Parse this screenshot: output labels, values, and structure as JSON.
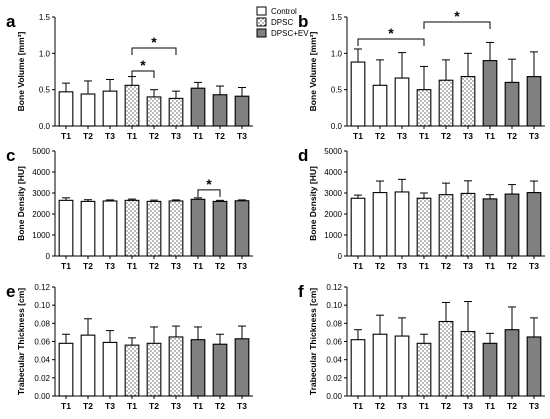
{
  "legend": {
    "items": [
      {
        "label": "Control",
        "pattern": "open"
      },
      {
        "label": "DPSC",
        "pattern": "dots"
      },
      {
        "label": "DPSC+EV",
        "pattern": "gray"
      }
    ]
  },
  "colors": {
    "gray_fill": "#808080",
    "outline": "#000000",
    "dot": "#555555"
  },
  "sig_label": "*",
  "chart_data": [
    {
      "panel": "a",
      "type": "bar",
      "ylabel": "Bone Volume [mm³]",
      "ylim": [
        0,
        1.5
      ],
      "yticks": [
        0,
        0.5,
        1.0,
        1.5
      ],
      "ytick_labels": [
        "0.0",
        "0.5",
        "1.0",
        "1.5"
      ],
      "categories": [
        "T1",
        "T2",
        "T3",
        "T1",
        "T2",
        "T3",
        "T1",
        "T2",
        "T3"
      ],
      "groups": [
        "Control",
        "Control",
        "Control",
        "DPSC",
        "DPSC",
        "DPSC",
        "DPSC+EV",
        "DPSC+EV",
        "DPSC+EV"
      ],
      "values": [
        0.47,
        0.44,
        0.48,
        0.56,
        0.4,
        0.38,
        0.52,
        0.43,
        0.41
      ],
      "errors": [
        0.12,
        0.18,
        0.16,
        0.12,
        0.1,
        0.1,
        0.08,
        0.12,
        0.12
      ],
      "significance": [
        {
          "from": 3,
          "to": 5,
          "label": "*"
        },
        {
          "from": 3,
          "to": 4,
          "label": "*"
        }
      ]
    },
    {
      "panel": "b",
      "type": "bar",
      "ylabel": "Bone Volume [mm³]",
      "ylim": [
        0,
        1.5
      ],
      "yticks": [
        0,
        0.5,
        1.0,
        1.5
      ],
      "ytick_labels": [
        "0.0",
        "0.5",
        "1.0",
        "1.5"
      ],
      "categories": [
        "T1",
        "T2",
        "T3",
        "T1",
        "T2",
        "T3",
        "T1",
        "T2",
        "T3"
      ],
      "groups": [
        "Control",
        "Control",
        "Control",
        "DPSC",
        "DPSC",
        "DPSC",
        "DPSC+EV",
        "DPSC+EV",
        "DPSC+EV"
      ],
      "values": [
        0.88,
        0.56,
        0.66,
        0.5,
        0.63,
        0.68,
        0.9,
        0.6,
        0.68
      ],
      "errors": [
        0.18,
        0.35,
        0.35,
        0.32,
        0.28,
        0.32,
        0.25,
        0.32,
        0.34
      ],
      "significance": [
        {
          "from": 0,
          "to": 3,
          "label": "*"
        },
        {
          "from": 3,
          "to": 6,
          "label": "*"
        }
      ]
    },
    {
      "panel": "c",
      "type": "bar",
      "ylabel": "Bone Density [HU]",
      "ylim": [
        0,
        5000
      ],
      "yticks": [
        0,
        1000,
        2000,
        3000,
        4000,
        5000
      ],
      "ytick_labels": [
        "0",
        "1000",
        "2000",
        "3000",
        "4000",
        "5000"
      ],
      "categories": [
        "T1",
        "T2",
        "T3",
        "T1",
        "T2",
        "T3",
        "T1",
        "T2",
        "T3"
      ],
      "groups": [
        "Control",
        "Control",
        "Control",
        "DPSC",
        "DPSC",
        "DPSC",
        "DPSC+EV",
        "DPSC+EV",
        "DPSC+EV"
      ],
      "values": [
        2650,
        2600,
        2620,
        2650,
        2600,
        2620,
        2700,
        2600,
        2630
      ],
      "errors": [
        120,
        80,
        50,
        60,
        60,
        50,
        70,
        50,
        40
      ],
      "significance": [
        {
          "from": 6,
          "to": 7,
          "label": "*"
        }
      ]
    },
    {
      "panel": "d",
      "type": "bar",
      "ylabel": "Bone Density [HU]",
      "ylim": [
        0,
        5000
      ],
      "yticks": [
        0,
        1000,
        2000,
        3000,
        4000,
        5000
      ],
      "ytick_labels": [
        "0",
        "1000",
        "2000",
        "3000",
        "4000",
        "5000"
      ],
      "categories": [
        "T1",
        "T2",
        "T3",
        "T1",
        "T2",
        "T3",
        "T1",
        "T2",
        "T3"
      ],
      "groups": [
        "Control",
        "Control",
        "Control",
        "DPSC",
        "DPSC",
        "DPSC",
        "DPSC+EV",
        "DPSC+EV",
        "DPSC+EV"
      ],
      "values": [
        2750,
        3020,
        3050,
        2750,
        2920,
        2980,
        2720,
        2950,
        3020
      ],
      "errors": [
        150,
        550,
        600,
        250,
        550,
        600,
        200,
        450,
        550
      ],
      "significance": []
    },
    {
      "panel": "e",
      "type": "bar",
      "ylabel": "Trabecular Thickness [cm]",
      "ylim": [
        0,
        0.12
      ],
      "yticks": [
        0,
        0.02,
        0.04,
        0.06,
        0.08,
        0.1,
        0.12
      ],
      "ytick_labels": [
        "0.00",
        "0.02",
        "0.04",
        "0.06",
        "0.08",
        "0.10",
        "0.12"
      ],
      "categories": [
        "T1",
        "T2",
        "T3",
        "T1",
        "T2",
        "T3",
        "T1",
        "T2",
        "T3"
      ],
      "groups": [
        "Control",
        "Control",
        "Control",
        "DPSC",
        "DPSC",
        "DPSC",
        "DPSC+EV",
        "DPSC+EV",
        "DPSC+EV"
      ],
      "values": [
        0.058,
        0.067,
        0.059,
        0.056,
        0.058,
        0.065,
        0.062,
        0.057,
        0.063
      ],
      "errors": [
        0.01,
        0.018,
        0.013,
        0.008,
        0.018,
        0.012,
        0.014,
        0.011,
        0.014
      ],
      "significance": []
    },
    {
      "panel": "f",
      "type": "bar",
      "ylabel": "Trabecular Thickness [cm]",
      "ylim": [
        0,
        0.12
      ],
      "yticks": [
        0,
        0.02,
        0.04,
        0.06,
        0.08,
        0.1,
        0.12
      ],
      "ytick_labels": [
        "0.00",
        "0.02",
        "0.04",
        "0.06",
        "0.08",
        "0.10",
        "0.12"
      ],
      "categories": [
        "T1",
        "T2",
        "T3",
        "T1",
        "T2",
        "T3",
        "T1",
        "T2",
        "T3"
      ],
      "groups": [
        "Control",
        "Control",
        "Control",
        "DPSC",
        "DPSC",
        "DPSC",
        "DPSC+EV",
        "DPSC+EV",
        "DPSC+EV"
      ],
      "values": [
        0.062,
        0.068,
        0.066,
        0.058,
        0.082,
        0.071,
        0.058,
        0.073,
        0.065
      ],
      "errors": [
        0.011,
        0.021,
        0.02,
        0.01,
        0.021,
        0.033,
        0.011,
        0.025,
        0.021
      ],
      "significance": []
    }
  ]
}
